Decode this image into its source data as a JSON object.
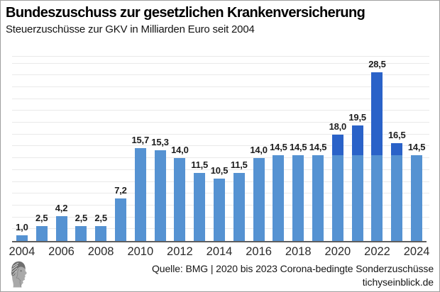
{
  "header": {
    "title": "Bundeszuschuss zur gesetzlichen Krankenversicherung",
    "subtitle": "Steuerzuschüsse zur GKV in Milliarden Euro seit 2004"
  },
  "footer": {
    "source_line": "Quelle: BMG | 2020 bis 2023 Corona-bedingte Sonderzuschüsse",
    "website": "tichyseinblick.de",
    "logo": "tichys-einblick-classical-head-logo"
  },
  "colors": {
    "bar_regular": "#5592d2",
    "bar_corona": "#2a62c8",
    "gridline": "#e9e9e9",
    "axis_line": "#5e5e5e",
    "frame_border": "#9f9f9f",
    "background": "#ffffff"
  },
  "chart_data": {
    "type": "bar",
    "stacked": true,
    "title": "Bundeszuschuss zur gesetzlichen Krankenversicherung",
    "subtitle": "Steuerzuschüsse zur GKV in Milliarden Euro seit 2004",
    "xlabel": "",
    "ylabel": "Milliarden Euro",
    "categories": [
      2004,
      2005,
      2006,
      2007,
      2008,
      2009,
      2010,
      2011,
      2012,
      2013,
      2014,
      2015,
      2016,
      2017,
      2018,
      2019,
      2020,
      2021,
      2022,
      2023,
      2024
    ],
    "x_tick_labels": [
      "2004",
      "2006",
      "2008",
      "2010",
      "2012",
      "2014",
      "2016",
      "2018",
      "2020",
      "2022",
      "2024"
    ],
    "series": [
      {
        "name": "Bundeszuschuss",
        "color": "#5592d2",
        "values": [
          1.0,
          2.5,
          4.2,
          2.5,
          2.5,
          7.2,
          15.7,
          15.3,
          14.0,
          11.5,
          10.5,
          11.5,
          14.0,
          14.5,
          14.5,
          14.5,
          14.5,
          14.5,
          14.5,
          14.5,
          14.5
        ]
      },
      {
        "name": "Corona-bedingte Sonderzuschüsse",
        "color": "#2a62c8",
        "values": [
          0,
          0,
          0,
          0,
          0,
          0,
          0,
          0,
          0,
          0,
          0,
          0,
          0,
          0,
          0,
          0,
          3.5,
          5.0,
          14.0,
          2.0,
          0
        ]
      }
    ],
    "totals": [
      1.0,
      2.5,
      4.2,
      2.5,
      2.5,
      7.2,
      15.7,
      15.3,
      14.0,
      11.5,
      10.5,
      11.5,
      14.0,
      14.5,
      14.5,
      14.5,
      18.0,
      19.5,
      28.5,
      16.5,
      14.5
    ],
    "data_labels": [
      "1,0",
      "2,5",
      "4,2",
      "2,5",
      "2,5",
      "7,2",
      "15,7",
      "15,3",
      "14,0",
      "11,5",
      "10,5",
      "11,5",
      "14,0",
      "14,5",
      "14,5",
      "14,5",
      "18,0",
      "19,5",
      "28,5",
      "16,5",
      "14,5"
    ],
    "ylim": [
      0,
      31.5
    ],
    "gridline_step": 2,
    "grid": true,
    "legend_position": "none",
    "y_axis_labels_visible": false
  }
}
